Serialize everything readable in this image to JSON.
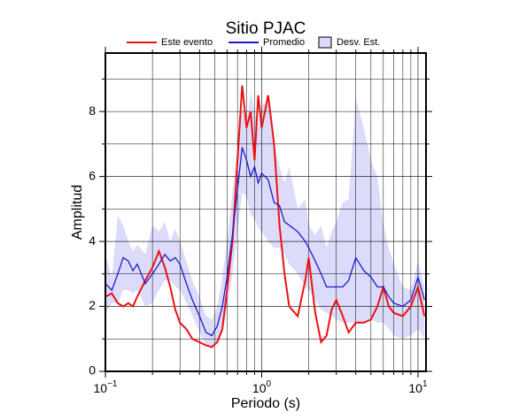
{
  "chart_data": {
    "type": "line",
    "title": "Sitio PJAC",
    "xlabel": "Periodo (s)",
    "ylabel": "Amplitud",
    "xscale": "log",
    "xlim": [
      0.1,
      11.25
    ],
    "ylim": [
      0,
      9.8
    ],
    "xticks": [
      {
        "value": 0.1,
        "label": "10",
        "exponent": "−1"
      },
      {
        "value": 1,
        "label": "10",
        "exponent": "0"
      },
      {
        "value": 10,
        "label": "10",
        "exponent": "1"
      }
    ],
    "xminorticks": [
      0.2,
      0.3,
      0.4,
      0.5,
      0.6,
      0.7,
      0.8,
      0.9,
      2,
      3,
      4,
      5,
      6,
      7,
      8,
      9
    ],
    "yticks": [
      0,
      2,
      4,
      6,
      8
    ],
    "yminorticks": [
      1,
      3,
      5,
      7,
      9
    ],
    "grid": true,
    "legend": "top",
    "x": [
      0.1,
      0.11,
      0.12,
      0.13,
      0.14,
      0.15,
      0.16,
      0.18,
      0.2,
      0.22,
      0.24,
      0.26,
      0.28,
      0.3,
      0.33,
      0.36,
      0.4,
      0.44,
      0.48,
      0.52,
      0.56,
      0.6,
      0.65,
      0.7,
      0.75,
      0.8,
      0.85,
      0.9,
      0.95,
      1.0,
      1.1,
      1.2,
      1.3,
      1.4,
      1.5,
      1.7,
      1.9,
      2.0,
      2.2,
      2.4,
      2.6,
      2.8,
      3.0,
      3.3,
      3.6,
      4.0,
      4.5,
      5.0,
      5.5,
      6.0,
      6.5,
      7.0,
      8.0,
      9.0,
      10,
      11
    ],
    "band": {
      "name": "Desv. Est.",
      "color": "#dcdcfa",
      "upper": [
        3.6,
        2.9,
        4.8,
        4.5,
        4.0,
        3.7,
        3.9,
        3.6,
        4.5,
        4.3,
        4.6,
        4.0,
        4.4,
        4.0,
        3.4,
        2.8,
        2.3,
        1.7,
        1.6,
        2.0,
        2.9,
        4.0,
        5.5,
        7.0,
        8.1,
        7.6,
        8.6,
        8.0,
        7.5,
        8.2,
        8.3,
        7.0,
        6.3,
        5.8,
        6.3,
        5.0,
        5.3,
        4.5,
        4.2,
        4.5,
        3.8,
        4.3,
        4.6,
        5.2,
        5.3,
        8.4,
        7.5,
        6.5,
        6.0,
        4.5,
        3.8,
        3.3,
        2.6,
        2.5,
        3.4,
        2.6
      ],
      "lower": [
        1.8,
        2.1,
        2.1,
        2.5,
        2.5,
        2.4,
        2.5,
        2.0,
        2.1,
        2.5,
        2.8,
        2.8,
        2.6,
        2.5,
        2.1,
        1.7,
        1.2,
        0.8,
        0.7,
        0.9,
        1.2,
        1.9,
        3.0,
        4.3,
        5.5,
        5.4,
        4.8,
        4.7,
        4.4,
        4.3,
        4.0,
        3.8,
        3.8,
        3.6,
        3.3,
        3.0,
        2.6,
        2.5,
        2.2,
        1.9,
        1.8,
        1.7,
        1.6,
        1.5,
        1.5,
        1.5,
        1.5,
        1.6,
        1.5,
        1.5,
        1.3,
        1.1,
        1.0,
        1.1,
        1.3,
        1.0
      ]
    },
    "series": [
      {
        "name": "Este evento",
        "color": "#ee1111",
        "values": [
          2.3,
          2.4,
          2.1,
          2.0,
          2.1,
          2.0,
          2.3,
          2.8,
          3.2,
          3.7,
          3.2,
          2.6,
          1.9,
          1.5,
          1.3,
          1.0,
          0.9,
          0.8,
          0.75,
          0.9,
          1.3,
          2.5,
          4.0,
          6.5,
          8.8,
          7.5,
          8.0,
          6.5,
          8.5,
          7.5,
          8.5,
          7.0,
          4.5,
          3.0,
          2.0,
          1.7,
          2.8,
          3.5,
          1.8,
          0.9,
          1.1,
          1.9,
          2.2,
          1.7,
          1.2,
          1.5,
          1.5,
          1.6,
          2.0,
          2.6,
          2.0,
          1.8,
          1.7,
          2.0,
          2.6,
          1.7
        ]
      },
      {
        "name": "Promedio",
        "color": "#1a1acc",
        "values": [
          2.7,
          2.5,
          3.0,
          3.5,
          3.4,
          3.1,
          3.3,
          2.7,
          3.0,
          3.3,
          3.6,
          3.4,
          3.5,
          3.3,
          2.7,
          2.2,
          1.7,
          1.2,
          1.1,
          1.4,
          2.0,
          2.9,
          4.2,
          5.6,
          6.9,
          6.5,
          6.0,
          6.3,
          5.8,
          6.1,
          5.9,
          5.2,
          5.1,
          4.6,
          4.5,
          4.3,
          4.0,
          3.8,
          3.4,
          3.0,
          2.6,
          2.6,
          2.6,
          2.6,
          2.8,
          3.5,
          3.1,
          2.9,
          2.6,
          2.6,
          2.3,
          2.1,
          2.0,
          2.2,
          2.9,
          2.2
        ]
      }
    ]
  }
}
